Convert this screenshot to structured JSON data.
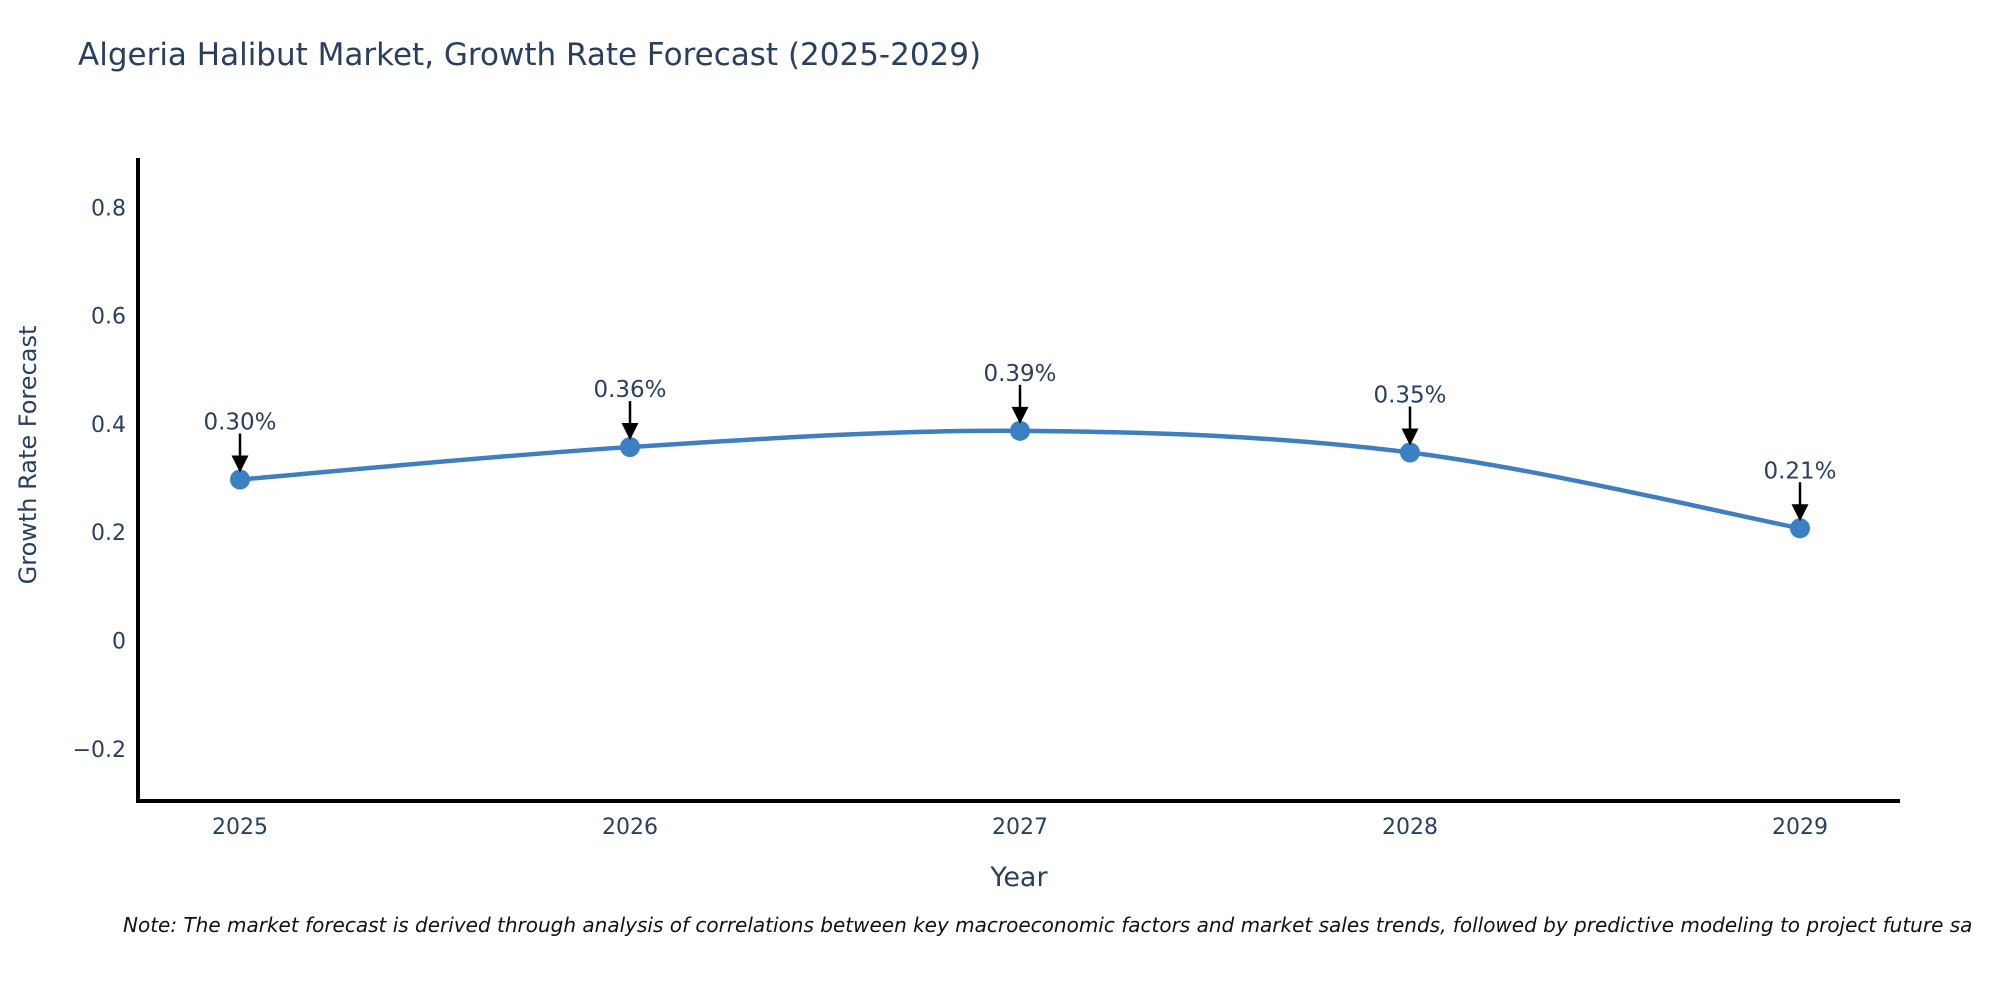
{
  "chart_data": {
    "type": "line",
    "title": "Algeria Halibut Market, Growth Rate Forecast (2025-2029)",
    "xlabel": "Year",
    "ylabel": "Growth Rate Forecast",
    "categories": [
      2025,
      2026,
      2027,
      2028,
      2029
    ],
    "xtick_labels": [
      "2025",
      "2026",
      "2027",
      "2028",
      "2029"
    ],
    "values": [
      0.3,
      0.36,
      0.39,
      0.35,
      0.21
    ],
    "point_labels": [
      "0.30%",
      "0.36%",
      "0.39%",
      "0.35%",
      "0.21%"
    ],
    "yticks": [
      -0.2,
      0,
      0.2,
      0.4,
      0.6,
      0.8
    ],
    "ytick_labels": [
      "−0.2",
      "0",
      "0.2",
      "0.4",
      "0.6",
      "0.8"
    ],
    "ylim": [
      -0.29,
      0.89
    ],
    "grid": false,
    "legend": "none",
    "line_shape": "spline",
    "line_color": "#3f7fbf",
    "marker_color": "#3a80c2",
    "axis_line_color": "#000000",
    "arrow_color": "#000000",
    "text_color": "#2a3f5f",
    "note": "Note: The market forecast is derived through analysis of correlations between key macroeconomic factors and market sales trends, followed by predictive modeling to project future sa"
  }
}
